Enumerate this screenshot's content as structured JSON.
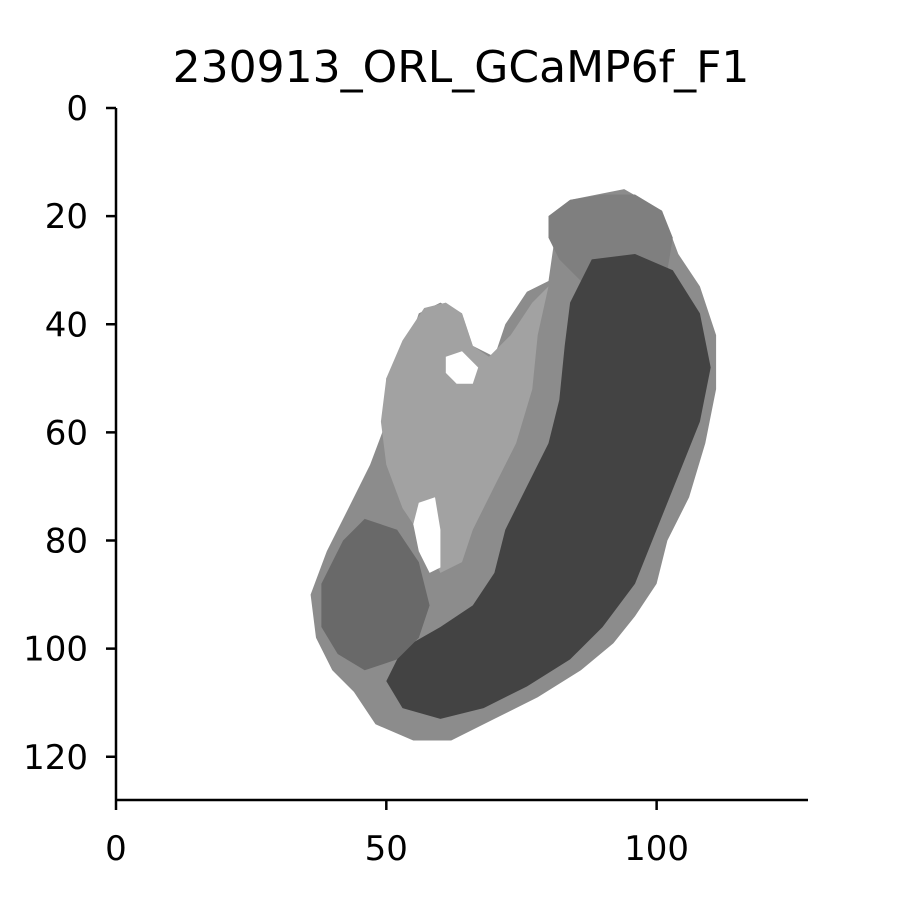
{
  "chart_data": {
    "type": "heatmap",
    "title": "230913_ORL_GCaMP6f_F1",
    "xlabel": "",
    "ylabel": "",
    "xlim": [
      0,
      128
    ],
    "ylim": [
      128,
      0
    ],
    "y_inverted": true,
    "grid": false,
    "colormap": "gray (white = background, dark = high signal)",
    "x_ticks": [
      0,
      50,
      100
    ],
    "x_tick_labels": [
      "0",
      "50",
      "100"
    ],
    "y_ticks": [
      0,
      20,
      40,
      60,
      80,
      100,
      120
    ],
    "y_tick_labels": [
      "0",
      "20",
      "40",
      "60",
      "80",
      "100",
      "120"
    ],
    "image_size": [
      128,
      128
    ],
    "regions": [
      {
        "name": "outer-body",
        "intensity": 0.52,
        "polygon": [
          [
            84,
            17
          ],
          [
            94,
            15
          ],
          [
            101,
            19
          ],
          [
            104,
            27
          ],
          [
            108,
            33
          ],
          [
            111,
            42
          ],
          [
            111,
            52
          ],
          [
            109,
            62
          ],
          [
            106,
            72
          ],
          [
            102,
            80
          ],
          [
            100,
            88
          ],
          [
            96,
            94
          ],
          [
            92,
            99
          ],
          [
            86,
            104
          ],
          [
            78,
            109
          ],
          [
            70,
            113
          ],
          [
            62,
            117
          ],
          [
            55,
            117
          ],
          [
            48,
            114
          ],
          [
            44,
            108
          ],
          [
            40,
            104
          ],
          [
            37,
            98
          ],
          [
            36,
            90
          ],
          [
            39,
            82
          ],
          [
            43,
            74
          ],
          [
            47,
            66
          ],
          [
            50,
            58
          ],
          [
            50,
            50
          ],
          [
            54,
            44
          ],
          [
            56,
            38
          ],
          [
            60,
            36
          ],
          [
            64,
            38
          ],
          [
            66,
            44
          ],
          [
            70,
            46
          ],
          [
            72,
            40
          ],
          [
            76,
            34
          ],
          [
            80,
            32
          ],
          [
            81,
            25
          ],
          [
            80,
            20
          ]
        ]
      },
      {
        "name": "left-lobe",
        "intensity": 0.42,
        "polygon": [
          [
            53,
            43
          ],
          [
            57,
            37
          ],
          [
            61,
            36
          ],
          [
            64,
            38
          ],
          [
            66,
            44
          ],
          [
            69,
            46
          ],
          [
            73,
            42
          ],
          [
            77,
            36
          ],
          [
            80,
            33
          ],
          [
            78,
            42
          ],
          [
            77,
            52
          ],
          [
            74,
            62
          ],
          [
            70,
            70
          ],
          [
            66,
            78
          ],
          [
            64,
            84
          ],
          [
            60,
            86
          ],
          [
            57,
            80
          ],
          [
            53,
            74
          ],
          [
            50,
            66
          ],
          [
            49,
            58
          ],
          [
            50,
            50
          ]
        ]
      },
      {
        "name": "top-lobe",
        "intensity": 0.58,
        "polygon": [
          [
            80,
            20
          ],
          [
            84,
            17
          ],
          [
            90,
            16
          ],
          [
            96,
            16
          ],
          [
            101,
            19
          ],
          [
            103,
            24
          ],
          [
            102,
            30
          ],
          [
            98,
            33
          ],
          [
            92,
            33
          ],
          [
            86,
            32
          ],
          [
            82,
            28
          ],
          [
            80,
            24
          ]
        ]
      },
      {
        "name": "dark-core",
        "intensity": 0.85,
        "polygon": [
          [
            88,
            28
          ],
          [
            96,
            27
          ],
          [
            103,
            30
          ],
          [
            108,
            38
          ],
          [
            110,
            48
          ],
          [
            108,
            58
          ],
          [
            104,
            68
          ],
          [
            100,
            78
          ],
          [
            96,
            88
          ],
          [
            90,
            96
          ],
          [
            84,
            102
          ],
          [
            76,
            107
          ],
          [
            68,
            111
          ],
          [
            60,
            113
          ],
          [
            53,
            111
          ],
          [
            50,
            106
          ],
          [
            53,
            100
          ],
          [
            60,
            96
          ],
          [
            66,
            92
          ],
          [
            70,
            86
          ],
          [
            72,
            78
          ],
          [
            76,
            70
          ],
          [
            80,
            62
          ],
          [
            82,
            54
          ],
          [
            83,
            44
          ],
          [
            84,
            36
          ]
        ]
      },
      {
        "name": "left-lower-lobe",
        "intensity": 0.68,
        "polygon": [
          [
            42,
            80
          ],
          [
            46,
            76
          ],
          [
            52,
            78
          ],
          [
            56,
            84
          ],
          [
            58,
            92
          ],
          [
            56,
            98
          ],
          [
            52,
            102
          ],
          [
            46,
            104
          ],
          [
            41,
            101
          ],
          [
            38,
            96
          ],
          [
            38,
            88
          ]
        ]
      },
      {
        "name": "hole-upper",
        "intensity": 0.0,
        "polygon": [
          [
            61,
            46
          ],
          [
            64,
            45
          ],
          [
            67,
            48
          ],
          [
            66,
            51
          ],
          [
            63,
            51
          ],
          [
            61,
            49
          ]
        ]
      },
      {
        "name": "hole-lower",
        "intensity": 0.0,
        "polygon": [
          [
            56,
            73
          ],
          [
            59,
            72
          ],
          [
            60,
            78
          ],
          [
            60,
            85
          ],
          [
            58,
            86
          ],
          [
            56,
            82
          ],
          [
            55,
            77
          ]
        ]
      }
    ]
  }
}
